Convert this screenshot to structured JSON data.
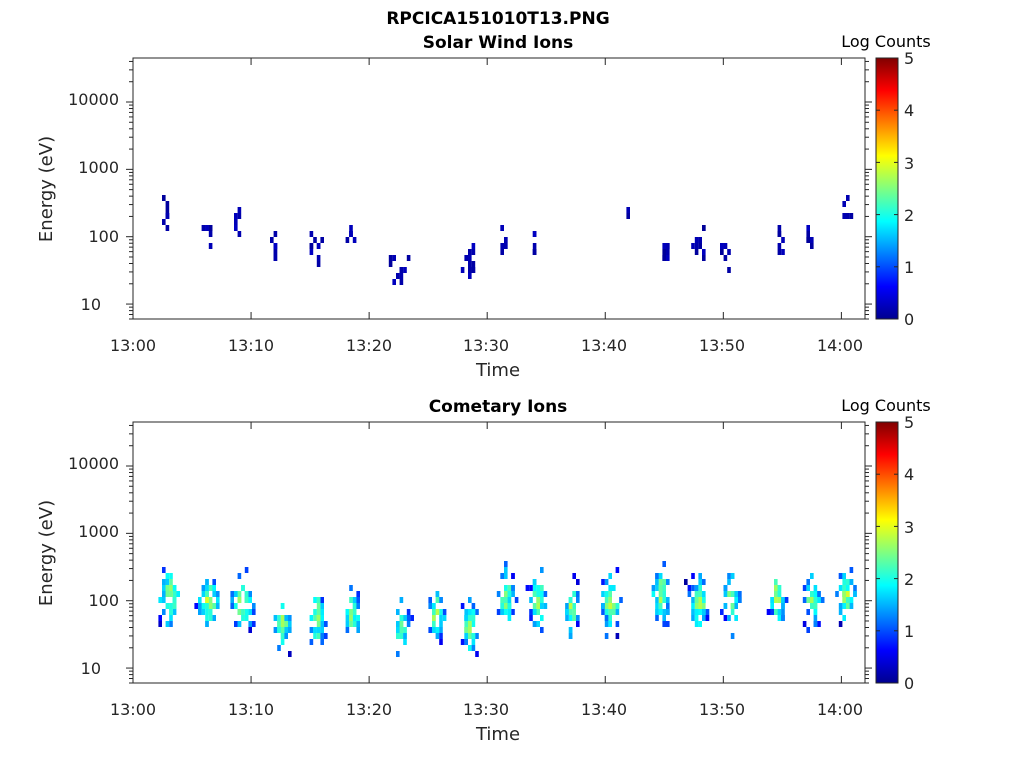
{
  "figure_title": "RPCICA151010T13.PNG",
  "colormap": [
    "#00008f",
    "#0000ff",
    "#0080ff",
    "#00ffff",
    "#80ff80",
    "#ffff00",
    "#ff8000",
    "#ff0000",
    "#800000"
  ],
  "chart_data": [
    {
      "type": "heatmap",
      "title": "Solar Wind Ions",
      "xlabel": "Time",
      "ylabel": "Energy (eV)",
      "xtick_labels": [
        "13:00",
        "13:10",
        "13:20",
        "13:30",
        "13:40",
        "13:50",
        "14:00"
      ],
      "xlim_minutes": [
        0,
        62
      ],
      "ytick_labels": [
        "10",
        "100",
        "1000",
        "10000"
      ],
      "ytick_values": [
        10,
        100,
        1000,
        10000
      ],
      "ylim": [
        6,
        45000
      ],
      "yscale": "log",
      "colorbar": {
        "label": "Log Counts",
        "ticks": [
          "0",
          "1",
          "2",
          "3",
          "4",
          "5"
        ],
        "range": [
          0,
          5
        ]
      },
      "clusters": [
        {
          "t": 2.6,
          "e": 200,
          "w": 0.5,
          "n": 8
        },
        {
          "t": 6.2,
          "e": 130,
          "w": 0.8,
          "n": 8
        },
        {
          "t": 8.8,
          "e": 180,
          "w": 0.3,
          "n": 6
        },
        {
          "t": 12.0,
          "e": 60,
          "w": 0.5,
          "n": 9
        },
        {
          "t": 15.3,
          "e": 65,
          "w": 0.8,
          "n": 10
        },
        {
          "t": 18.3,
          "e": 90,
          "w": 0.3,
          "n": 6
        },
        {
          "t": 22.6,
          "e": 35,
          "w": 1.2,
          "n": 12
        },
        {
          "t": 28.5,
          "e": 40,
          "w": 0.9,
          "n": 12
        },
        {
          "t": 31.3,
          "e": 80,
          "w": 0.5,
          "n": 8
        },
        {
          "t": 33.8,
          "e": 70,
          "w": 0.2,
          "n": 6
        },
        {
          "t": 41.8,
          "e": 150,
          "w": 0.1,
          "n": 2
        },
        {
          "t": 45.0,
          "e": 50,
          "w": 0.4,
          "n": 8
        },
        {
          "t": 47.8,
          "e": 90,
          "w": 0.7,
          "n": 12
        },
        {
          "t": 50.2,
          "e": 60,
          "w": 0.6,
          "n": 8
        },
        {
          "t": 54.6,
          "e": 100,
          "w": 0.3,
          "n": 7
        },
        {
          "t": 57.2,
          "e": 120,
          "w": 0.6,
          "n": 6
        },
        {
          "t": 60.2,
          "e": 200,
          "w": 0.6,
          "n": 6
        }
      ]
    },
    {
      "type": "heatmap",
      "title": "Cometary Ions",
      "xlabel": "Time",
      "ylabel": "Energy (eV)",
      "xtick_labels": [
        "13:00",
        "13:10",
        "13:20",
        "13:30",
        "13:40",
        "13:50",
        "14:00"
      ],
      "xlim_minutes": [
        0,
        62
      ],
      "ytick_labels": [
        "10",
        "100",
        "1000",
        "10000"
      ],
      "ytick_values": [
        10,
        100,
        1000,
        10000
      ],
      "ylim": [
        6,
        45000
      ],
      "yscale": "log",
      "colorbar": {
        "label": "Log Counts",
        "ticks": [
          "0",
          "1",
          "2",
          "3",
          "4",
          "5"
        ],
        "range": [
          0,
          5
        ]
      },
      "clusters": [
        {
          "t": 3.0,
          "e": 120,
          "w": 1.3,
          "n": 45
        },
        {
          "t": 6.3,
          "e": 100,
          "w": 1.3,
          "n": 45
        },
        {
          "t": 9.2,
          "e": 90,
          "w": 1.3,
          "n": 45
        },
        {
          "t": 12.5,
          "e": 45,
          "w": 0.9,
          "n": 35
        },
        {
          "t": 15.5,
          "e": 55,
          "w": 1.0,
          "n": 40
        },
        {
          "t": 18.4,
          "e": 60,
          "w": 0.9,
          "n": 35
        },
        {
          "t": 22.6,
          "e": 40,
          "w": 1.0,
          "n": 30
        },
        {
          "t": 25.5,
          "e": 60,
          "w": 1.0,
          "n": 35
        },
        {
          "t": 28.4,
          "e": 40,
          "w": 1.0,
          "n": 40
        },
        {
          "t": 31.5,
          "e": 110,
          "w": 1.0,
          "n": 40
        },
        {
          "t": 34.2,
          "e": 100,
          "w": 1.0,
          "n": 40
        },
        {
          "t": 37.0,
          "e": 80,
          "w": 0.9,
          "n": 30
        },
        {
          "t": 40.3,
          "e": 90,
          "w": 1.2,
          "n": 45
        },
        {
          "t": 44.6,
          "e": 120,
          "w": 1.1,
          "n": 50
        },
        {
          "t": 47.8,
          "e": 90,
          "w": 1.2,
          "n": 50
        },
        {
          "t": 50.6,
          "e": 100,
          "w": 1.1,
          "n": 40
        },
        {
          "t": 54.4,
          "e": 110,
          "w": 1.0,
          "n": 40
        },
        {
          "t": 57.4,
          "e": 100,
          "w": 1.0,
          "n": 40
        },
        {
          "t": 60.3,
          "e": 130,
          "w": 1.0,
          "n": 45
        }
      ]
    }
  ]
}
